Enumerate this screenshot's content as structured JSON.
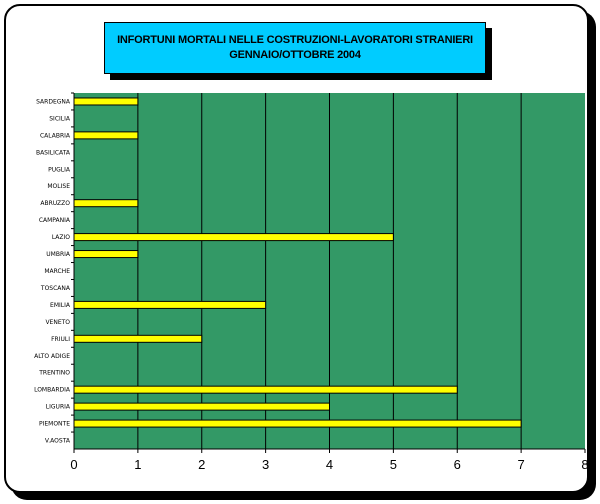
{
  "chart_data": {
    "type": "bar",
    "orientation": "horizontal",
    "title": [
      "INFORTUNI MORTALI NELLE COSTRUZIONI-LAVORATORI STRANIERI",
      "GENNAIO/OTTOBRE 2004"
    ],
    "categories": [
      "SARDEGNA",
      "SICILIA",
      "CALABRIA",
      "BASILICATA",
      "PUGLIA",
      "MOLISE",
      "ABRUZZO",
      "CAMPANIA",
      "LAZIO",
      "UMBRIA",
      "MARCHE",
      "TOSCANA",
      "EMILIA",
      "VENETO",
      "FRIULI",
      "ALTO ADIGE",
      "TRENTINO",
      "LOMBARDIA",
      "LIGURIA",
      "PIEMONTE",
      "V.AOSTA"
    ],
    "values": [
      1,
      0,
      1,
      0,
      0,
      0,
      1,
      0,
      5,
      1,
      0,
      0,
      3,
      0,
      2,
      0,
      0,
      6,
      4,
      7,
      0
    ],
    "xlim": [
      0,
      8
    ],
    "xticks": [
      0,
      1,
      2,
      3,
      4,
      5,
      6,
      7,
      8
    ],
    "grid": "vertical major gridlines",
    "legend": "none",
    "colors": {
      "plot_area": "#339966",
      "bar_fill": "#ffff00",
      "bar_edge": "#000000",
      "title_background": "#00ccff"
    }
  }
}
